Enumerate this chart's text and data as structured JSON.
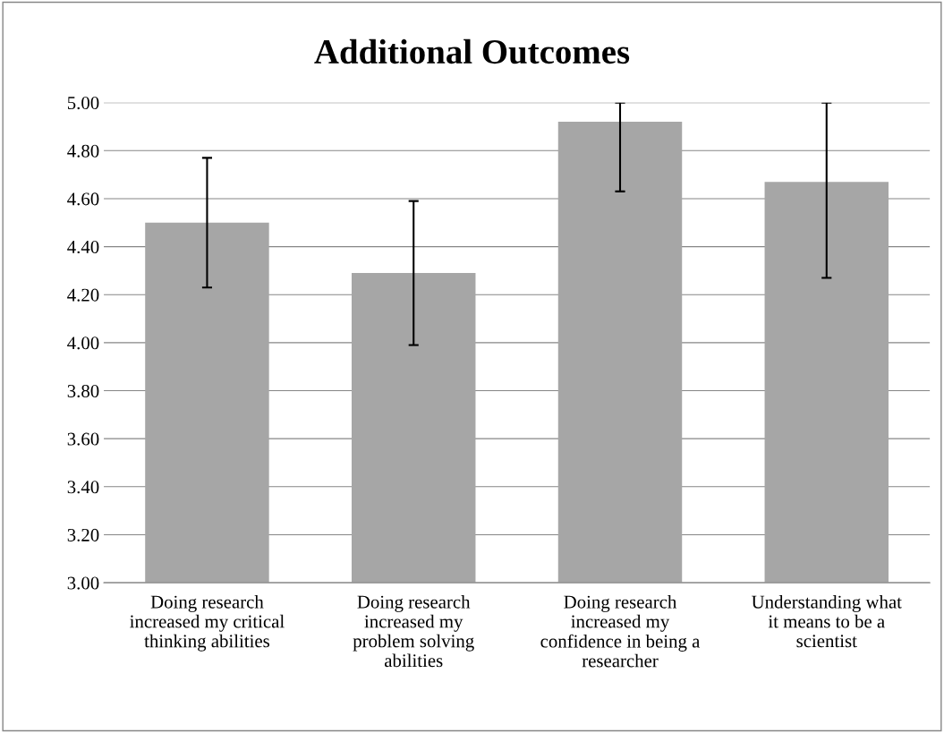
{
  "chart_data": {
    "type": "bar",
    "title": "Additional Outcomes",
    "categories": [
      "Doing research\nincreased my critical\nthinking abilities",
      "Doing research\nincreased my\nproblem solving\nabilities",
      "Doing research\nincreased my\nconfidence in being a\nresearcher",
      "Understanding what\nit means to be a\nscientist"
    ],
    "values": [
      4.5,
      4.29,
      4.92,
      4.67
    ],
    "errors": [
      [
        4.23,
        4.77
      ],
      [
        3.99,
        4.59
      ],
      [
        4.63,
        5.0
      ],
      [
        4.27,
        5.0
      ]
    ],
    "color": "#a6a6a6",
    "ylim": [
      3.0,
      5.0
    ],
    "yticks": [
      {
        "value": 3.0,
        "label": "3.00"
      },
      {
        "value": 3.2,
        "label": "3.20"
      },
      {
        "value": 3.4,
        "label": "3.40"
      },
      {
        "value": 3.6,
        "label": "3.60"
      },
      {
        "value": 3.8,
        "label": "3.80"
      },
      {
        "value": 4.0,
        "label": "4.00"
      },
      {
        "value": 4.2,
        "label": "4.20"
      },
      {
        "value": 4.4,
        "label": "4.40"
      },
      {
        "value": 4.6,
        "label": "4.60"
      },
      {
        "value": 4.8,
        "label": "4.80"
      },
      {
        "value": 5.0,
        "label": "5.00"
      }
    ],
    "grid": "y",
    "legend": false
  }
}
